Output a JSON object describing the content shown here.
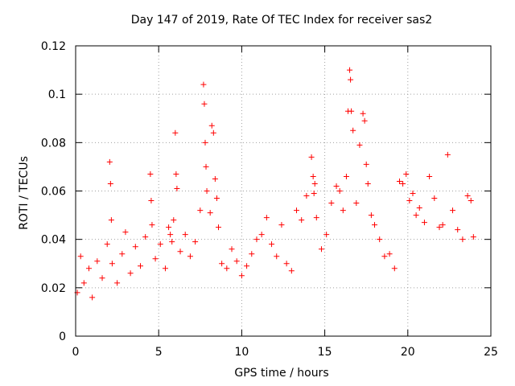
{
  "chart_data": {
    "type": "scatter",
    "title": "Day 147 of 2019, Rate Of TEC Index for receiver sas2",
    "xlabel": "GPS time / hours",
    "ylabel": "ROTI / TECUs",
    "xlim": [
      0,
      25
    ],
    "ylim": [
      0,
      0.12
    ],
    "xticks": [
      0,
      5,
      10,
      15,
      20,
      25
    ],
    "yticks": [
      0,
      0.02,
      0.04,
      0.06,
      0.08,
      0.1,
      0.12
    ],
    "xtick_labels": [
      "0",
      "5",
      "10",
      "15",
      "20",
      "25"
    ],
    "ytick_labels": [
      "0",
      "0.02",
      "0.04",
      "0.06",
      "0.08",
      "0.1",
      "0.12"
    ],
    "grid": true,
    "marker": "+",
    "color": "#ff0000",
    "series": [
      {
        "name": "ROTI",
        "x": [
          0.1,
          0.3,
          0.5,
          0.8,
          1.0,
          1.3,
          1.6,
          1.9,
          2.05,
          2.1,
          2.15,
          2.2,
          2.5,
          2.8,
          3.0,
          3.3,
          3.6,
          3.9,
          4.2,
          4.5,
          4.55,
          4.6,
          4.8,
          5.1,
          5.4,
          5.6,
          5.7,
          5.8,
          5.9,
          6.0,
          6.05,
          6.1,
          6.3,
          6.6,
          6.9,
          7.2,
          7.5,
          7.7,
          7.75,
          7.8,
          7.85,
          7.9,
          8.1,
          8.2,
          8.3,
          8.4,
          8.5,
          8.6,
          8.8,
          9.1,
          9.4,
          9.7,
          10.0,
          10.3,
          10.6,
          10.9,
          11.2,
          11.5,
          11.8,
          12.1,
          12.4,
          12.7,
          13.0,
          13.3,
          13.6,
          13.9,
          14.2,
          14.3,
          14.35,
          14.4,
          14.5,
          14.8,
          15.1,
          15.4,
          15.7,
          15.9,
          16.1,
          16.3,
          16.4,
          16.5,
          16.55,
          16.6,
          16.7,
          16.9,
          17.1,
          17.3,
          17.4,
          17.5,
          17.6,
          17.8,
          18.0,
          18.3,
          18.6,
          18.9,
          19.2,
          19.5,
          19.7,
          19.9,
          20.1,
          20.3,
          20.5,
          20.7,
          21.0,
          21.3,
          21.6,
          21.9,
          22.1,
          22.4,
          22.7,
          23.0,
          23.3,
          23.6,
          23.8,
          23.95
        ],
        "y": [
          0.018,
          0.033,
          0.022,
          0.028,
          0.016,
          0.031,
          0.024,
          0.038,
          0.072,
          0.063,
          0.048,
          0.03,
          0.022,
          0.034,
          0.043,
          0.026,
          0.037,
          0.029,
          0.041,
          0.067,
          0.056,
          0.046,
          0.032,
          0.038,
          0.028,
          0.045,
          0.042,
          0.039,
          0.048,
          0.084,
          0.067,
          0.061,
          0.035,
          0.042,
          0.033,
          0.039,
          0.052,
          0.104,
          0.096,
          0.08,
          0.07,
          0.06,
          0.051,
          0.087,
          0.084,
          0.065,
          0.057,
          0.045,
          0.03,
          0.028,
          0.036,
          0.031,
          0.025,
          0.029,
          0.034,
          0.04,
          0.042,
          0.049,
          0.038,
          0.033,
          0.046,
          0.03,
          0.027,
          0.052,
          0.048,
          0.058,
          0.074,
          0.066,
          0.059,
          0.063,
          0.049,
          0.036,
          0.042,
          0.055,
          0.062,
          0.06,
          0.052,
          0.066,
          0.093,
          0.11,
          0.106,
          0.093,
          0.085,
          0.055,
          0.079,
          0.092,
          0.089,
          0.071,
          0.063,
          0.05,
          0.046,
          0.04,
          0.033,
          0.034,
          0.028,
          0.064,
          0.063,
          0.067,
          0.056,
          0.059,
          0.05,
          0.053,
          0.047,
          0.066,
          0.057,
          0.045,
          0.046,
          0.075,
          0.052,
          0.044,
          0.04,
          0.058,
          0.056,
          0.041
        ]
      }
    ]
  }
}
